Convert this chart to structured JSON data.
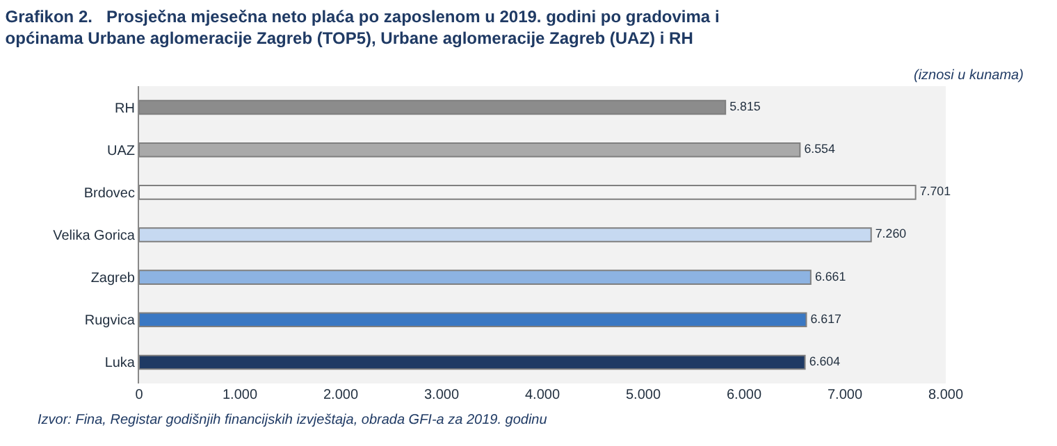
{
  "chart_data": {
    "type": "bar",
    "orientation": "horizontal",
    "title": "Grafikon 2.   Prosječna mjesečna neto plaća po zaposlenom u 2019. godini po gradovima i općinama Urbane aglomeracije Zagreb (TOP5), Urbane aglomeracije Zagreb (UAZ) i RH",
    "subtitle": "(iznosi u kunama)",
    "categories": [
      "RH",
      "UAZ",
      "Brdovec",
      "Velika Gorica",
      "Zagreb",
      "Rugvica",
      "Luka"
    ],
    "values": [
      5815,
      6554,
      7701,
      7260,
      6661,
      6617,
      6604
    ],
    "value_labels": [
      "5.815",
      "6.554",
      "7.701",
      "7.260",
      "6.661",
      "6.617",
      "6.604"
    ],
    "colors": [
      "#8c8c8c",
      "#a9a9a9",
      "#f4f4f4",
      "#c6d9f1",
      "#8db3e2",
      "#3a78c3",
      "#1f3a64"
    ],
    "xlim": [
      0,
      8000
    ],
    "xticks": [
      {
        "value": 0,
        "label": "0"
      },
      {
        "value": 1000,
        "label": "1.000"
      },
      {
        "value": 2000,
        "label": "2.000"
      },
      {
        "value": 3000,
        "label": "3.000"
      },
      {
        "value": 4000,
        "label": "4.000"
      },
      {
        "value": 5000,
        "label": "5.000"
      },
      {
        "value": 6000,
        "label": "6.000"
      },
      {
        "value": 7000,
        "label": "7.000"
      },
      {
        "value": 8000,
        "label": "8.000"
      }
    ],
    "grid": false,
    "legend": false,
    "annotations": [
      "Izvor: Fina, Registar godišnjih financijskih izvještaja, obrada GFI-a za 2019. godinu"
    ]
  }
}
